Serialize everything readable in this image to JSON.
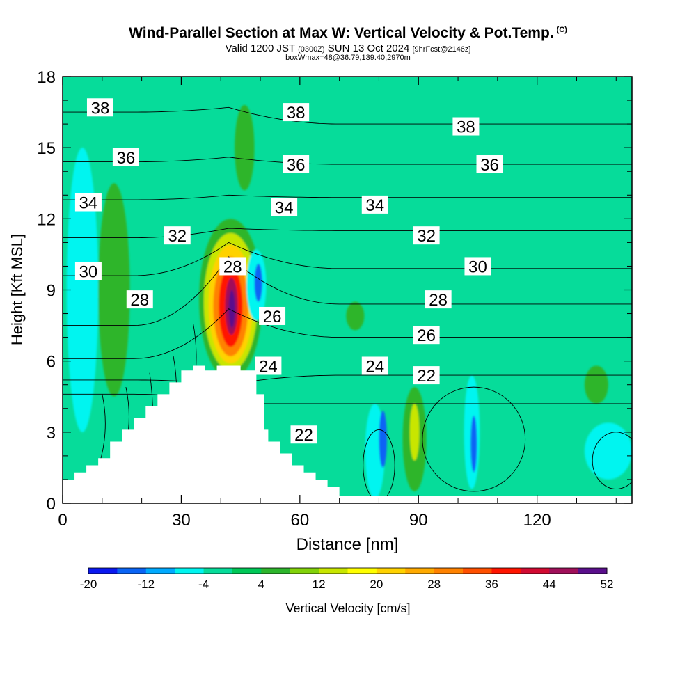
{
  "title": {
    "main": "Wind-Parallel Section at Max W: Vertical Velocity & Pot.Temp.",
    "copyright_mark": "(C)",
    "valid_prefix": "Valid 1200 JST",
    "valid_utc": "(0300Z)",
    "valid_date": "SUN 13 Oct 2024",
    "forecast_info": "[9hrFcst@2146z]",
    "box_info": "boxWmax=48@36.79,139.40,2970m"
  },
  "colors": {
    "background_field": "#06dc9a",
    "terrain": "#ffffff",
    "contour_line": "#000000"
  },
  "chart_data": {
    "type": "heatmap",
    "xlabel": "Distance [nm]",
    "ylabel": "Height [Kft MSL]",
    "xlim": [
      0,
      144
    ],
    "ylim": [
      0,
      18
    ],
    "x_ticks": [
      0,
      30,
      60,
      90,
      120
    ],
    "x_tick_labels": [
      "0",
      "30",
      "60",
      "90",
      "120"
    ],
    "y_ticks": [
      0,
      3,
      6,
      9,
      12,
      15,
      18
    ],
    "y_tick_labels": [
      "0",
      "3",
      "6",
      "9",
      "12",
      "15",
      "18"
    ],
    "colorbar": {
      "label": "Vertical Velocity [cm/s]",
      "levels": [
        -20,
        -16,
        -12,
        -8,
        -4,
        0,
        4,
        8,
        12,
        16,
        20,
        24,
        28,
        32,
        36,
        40,
        44,
        48,
        52
      ],
      "tick_labels": [
        "-20",
        "-12",
        "-4",
        "4",
        "12",
        "20",
        "28",
        "36",
        "44",
        "52"
      ],
      "colors": [
        "#0a18f0",
        "#0a64f5",
        "#00aaff",
        "#00f5f0",
        "#06dc9a",
        "#00c857",
        "#2db52c",
        "#82d20a",
        "#c8e600",
        "#ffff00",
        "#ffd200",
        "#ffaa00",
        "#ff8200",
        "#ff5000",
        "#ff1400",
        "#d20a32",
        "#a0105a",
        "#5a0f8c"
      ]
    },
    "terrain_profile_x": [
      0,
      3,
      3,
      6,
      6,
      9,
      9,
      12,
      12,
      15,
      15,
      18,
      18,
      21,
      21,
      24,
      24,
      27,
      27,
      30,
      30,
      33,
      33,
      36,
      36,
      39,
      39,
      42,
      42,
      45,
      45,
      48,
      48,
      49,
      49,
      51,
      51,
      52,
      52,
      55,
      55,
      58,
      58,
      61,
      61,
      64,
      64,
      67,
      67,
      70,
      70,
      73,
      73,
      144
    ],
    "terrain_profile_y": [
      1.0,
      1.0,
      1.3,
      1.3,
      1.6,
      1.6,
      1.9,
      1.9,
      2.6,
      2.6,
      3.1,
      3.1,
      3.6,
      3.6,
      4.1,
      4.1,
      4.6,
      4.6,
      5.1,
      5.1,
      5.6,
      5.6,
      5.8,
      5.8,
      5.6,
      5.6,
      5.8,
      5.8,
      5.8,
      5.8,
      5.6,
      5.6,
      5.6,
      5.6,
      4.6,
      4.6,
      3.1,
      3.1,
      2.6,
      2.6,
      2.1,
      2.1,
      1.6,
      1.6,
      1.3,
      1.3,
      1.0,
      1.0,
      0.7,
      0.7,
      0.3,
      0.3,
      0.3,
      0.3
    ],
    "velocity_regions": [
      {
        "level": 4,
        "x": 42.5,
        "y": 8.6,
        "rx": 8.0,
        "ry": 3.4
      },
      {
        "level": 12,
        "x": 42.5,
        "y": 8.5,
        "rx": 6.8,
        "ry": 2.9
      },
      {
        "level": 20,
        "x": 42.5,
        "y": 8.4,
        "rx": 5.6,
        "ry": 2.5
      },
      {
        "level": 28,
        "x": 42.5,
        "y": 8.3,
        "rx": 4.4,
        "ry": 2.1
      },
      {
        "level": 36,
        "x": 42.5,
        "y": 8.3,
        "rx": 3.0,
        "ry": 1.7
      },
      {
        "level": 44,
        "x": 42.7,
        "y": 8.3,
        "rx": 1.6,
        "ry": 1.2
      },
      {
        "level": 48,
        "x": 42.8,
        "y": 8.2,
        "rx": 0.8,
        "ry": 0.8
      },
      {
        "level": -8,
        "x": 49,
        "y": 9.2,
        "rx": 2.5,
        "ry": 1.5
      },
      {
        "level": -16,
        "x": 49.5,
        "y": 9.3,
        "rx": 1.0,
        "ry": 0.8
      },
      {
        "level": -8,
        "x": 79,
        "y": 2.2,
        "rx": 2.5,
        "ry": 2.0
      },
      {
        "level": -16,
        "x": 81,
        "y": 2.7,
        "rx": 1.0,
        "ry": 1.2
      },
      {
        "level": -8,
        "x": 103.5,
        "y": 3.0,
        "rx": 2.0,
        "ry": 2.4
      },
      {
        "level": -16,
        "x": 104,
        "y": 2.5,
        "rx": 0.8,
        "ry": 1.2
      },
      {
        "level": -8,
        "x": 138,
        "y": 2.2,
        "rx": 6.0,
        "ry": 1.2
      },
      {
        "level": -8,
        "x": 5,
        "y": 9.0,
        "rx": 4.0,
        "ry": 6.0
      },
      {
        "level": 4,
        "x": 13,
        "y": 9.0,
        "rx": 4.0,
        "ry": 4.5
      },
      {
        "level": 4,
        "x": 46,
        "y": 15.0,
        "rx": 2.5,
        "ry": 1.8
      },
      {
        "level": 4,
        "x": 89,
        "y": 2.7,
        "rx": 3.0,
        "ry": 2.2
      },
      {
        "level": 12,
        "x": 89,
        "y": 3.0,
        "rx": 1.2,
        "ry": 1.2
      },
      {
        "level": 4,
        "x": 135,
        "y": 5.0,
        "rx": 3.0,
        "ry": 0.8
      },
      {
        "level": 4,
        "x": 74,
        "y": 7.9,
        "rx": 2.3,
        "ry": 0.6
      }
    ],
    "theta_contours": [
      {
        "value": 22,
        "y0": 4.6,
        "yp": 4.2,
        "yr": 4.2
      },
      {
        "value": 24,
        "y0": 5.2,
        "yp": 5.0,
        "yr": 5.4
      },
      {
        "value": 26,
        "y0": 6.1,
        "yp": 8.2,
        "yr": 7.0
      },
      {
        "value": 28,
        "y0": 7.5,
        "yp": 10.4,
        "yr": 8.4
      },
      {
        "value": 30,
        "y0": 9.6,
        "yp": 11.0,
        "yr": 9.9
      },
      {
        "value": 32,
        "y0": 11.2,
        "yp": 11.6,
        "yr": 11.5
      },
      {
        "value": 34,
        "y0": 12.8,
        "yp": 13.0,
        "yr": 12.9
      },
      {
        "value": 36,
        "y0": 14.4,
        "yp": 14.6,
        "yr": 14.3
      },
      {
        "value": 38,
        "y0": 16.5,
        "yp": 16.7,
        "yr": 16.0
      }
    ],
    "contour_labels": [
      {
        "text": "38",
        "x": 9.5,
        "y": 16.7
      },
      {
        "text": "38",
        "x": 59,
        "y": 16.5
      },
      {
        "text": "38",
        "x": 102,
        "y": 15.9
      },
      {
        "text": "36",
        "x": 16,
        "y": 14.6
      },
      {
        "text": "36",
        "x": 59,
        "y": 14.3
      },
      {
        "text": "36",
        "x": 108,
        "y": 14.3
      },
      {
        "text": "34",
        "x": 6.5,
        "y": 12.7
      },
      {
        "text": "34",
        "x": 56,
        "y": 12.5
      },
      {
        "text": "34",
        "x": 79,
        "y": 12.6
      },
      {
        "text": "32",
        "x": 29,
        "y": 11.3
      },
      {
        "text": "32",
        "x": 92,
        "y": 11.3
      },
      {
        "text": "30",
        "x": 6.5,
        "y": 9.8
      },
      {
        "text": "30",
        "x": 105,
        "y": 10.0
      },
      {
        "text": "28",
        "x": 19.5,
        "y": 8.6
      },
      {
        "text": "28",
        "x": 43,
        "y": 10.0
      },
      {
        "text": "28",
        "x": 95,
        "y": 8.6
      },
      {
        "text": "26",
        "x": 53,
        "y": 7.9
      },
      {
        "text": "26",
        "x": 92,
        "y": 7.1
      },
      {
        "text": "24",
        "x": 52,
        "y": 5.8
      },
      {
        "text": "24",
        "x": 79,
        "y": 5.8
      },
      {
        "text": "22",
        "x": 61,
        "y": 2.9
      },
      {
        "text": "22",
        "x": 92,
        "y": 5.4
      }
    ]
  }
}
